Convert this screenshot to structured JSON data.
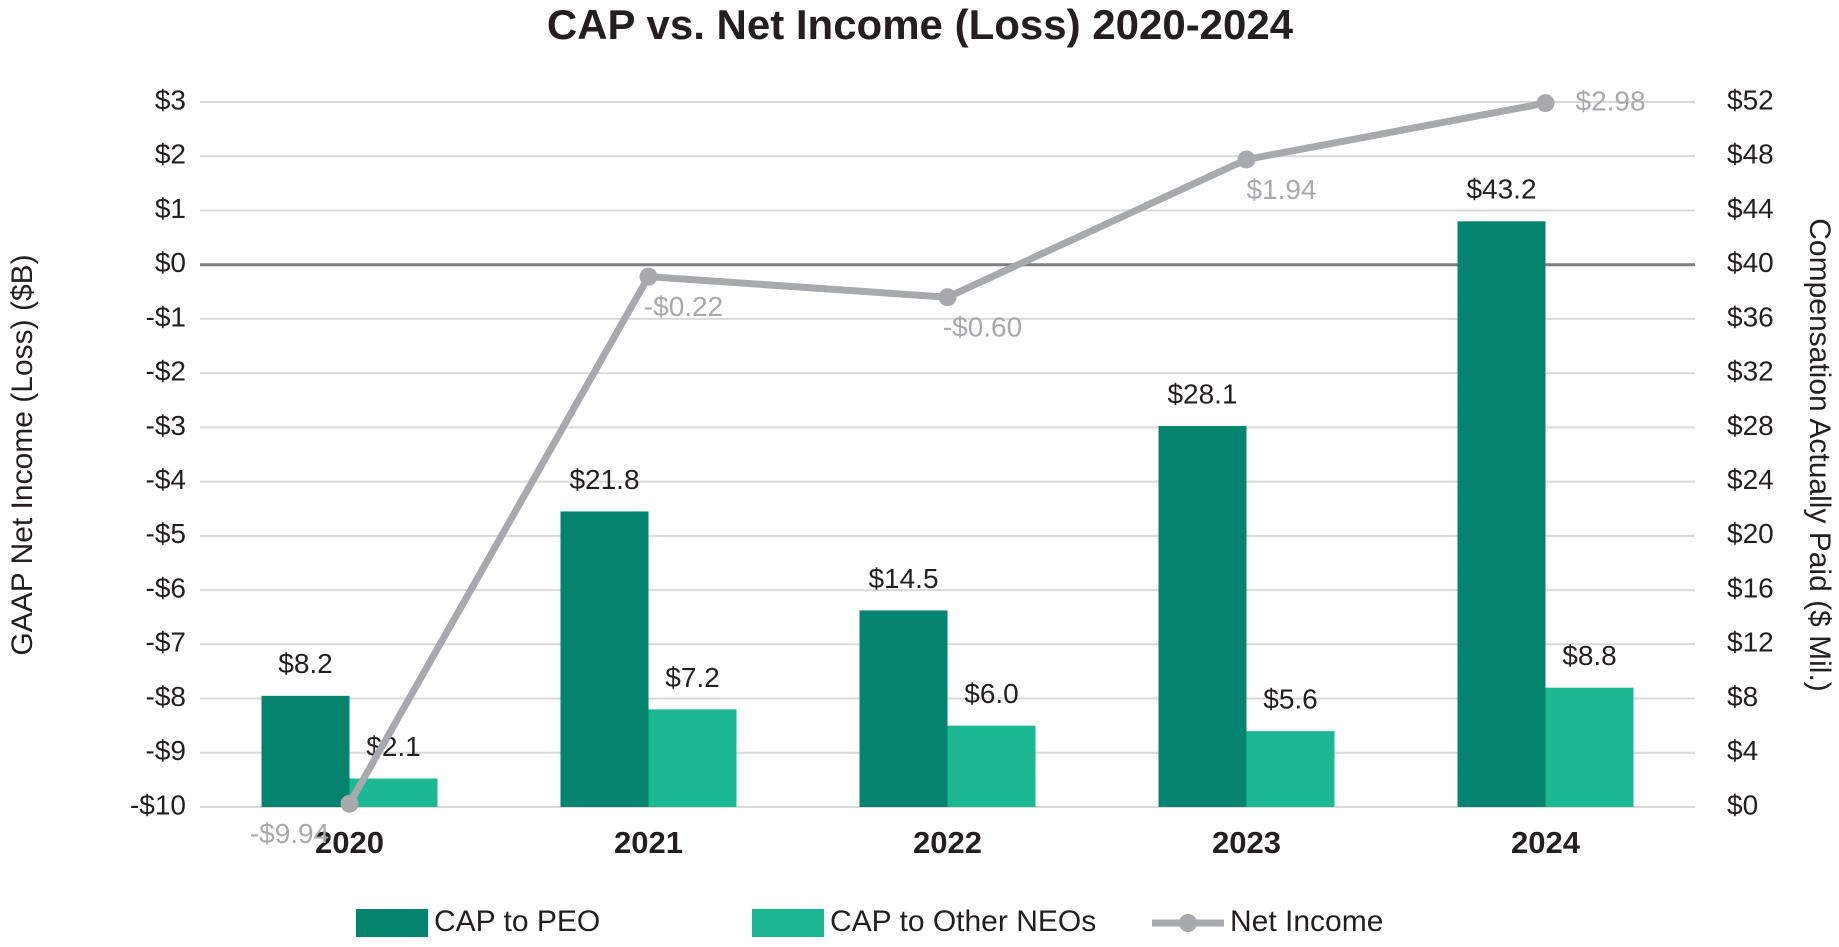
{
  "chart_data": {
    "type": "bar",
    "title": "CAP vs. Net Income (Loss) 2020-2024",
    "ylabel": "GAAP Net Income (Loss) ($B)",
    "y2label": "Compensation Actually Paid ($  Mil.)",
    "categories": [
      "2020",
      "2021",
      "2022",
      "2023",
      "2024"
    ],
    "series": [
      {
        "name": "CAP to PEO",
        "type": "bar",
        "axis": "y2",
        "color": "#04836f",
        "values": [
          8.2,
          21.8,
          14.5,
          28.1,
          43.2
        ],
        "value_labels": [
          "$8.2",
          "$21.8",
          "$14.5",
          "$28.1",
          "$43.2"
        ]
      },
      {
        "name": "CAP to Other NEOs",
        "type": "bar",
        "axis": "y2",
        "color": "#1cb892",
        "values": [
          2.1,
          7.2,
          6.0,
          5.6,
          8.8
        ],
        "value_labels": [
          "$2.1",
          "$7.2",
          "$6.0",
          "$5.6",
          "$8.8"
        ]
      },
      {
        "name": "Net Income",
        "type": "line",
        "axis": "y",
        "color": "#a7a9ac",
        "values": [
          -9.94,
          -0.22,
          -0.6,
          1.94,
          2.98
        ],
        "value_labels": [
          "-$9.94",
          "-$0.22",
          "-$0.60",
          "$1.94",
          "$2.98"
        ]
      }
    ],
    "ylim": [
      -10,
      3
    ],
    "yticks": [
      {
        "value": 3,
        "label": "$3"
      },
      {
        "value": 2,
        "label": "$2"
      },
      {
        "value": 1,
        "label": "$1"
      },
      {
        "value": 0,
        "label": "$0"
      },
      {
        "value": -1,
        "label": "-$1"
      },
      {
        "value": -2,
        "label": "-$2"
      },
      {
        "value": -3,
        "label": "-$3"
      },
      {
        "value": -4,
        "label": "-$4"
      },
      {
        "value": -5,
        "label": "-$5"
      },
      {
        "value": -6,
        "label": "-$6"
      },
      {
        "value": -7,
        "label": "-$7"
      },
      {
        "value": -8,
        "label": "-$8"
      },
      {
        "value": -9,
        "label": "-$9"
      },
      {
        "value": -10,
        "label": "-$10"
      }
    ],
    "y2lim": [
      0,
      52
    ],
    "y2ticks": [
      {
        "value": 52,
        "label": "$52"
      },
      {
        "value": 48,
        "label": "$48"
      },
      {
        "value": 44,
        "label": "$44"
      },
      {
        "value": 40,
        "label": "$40"
      },
      {
        "value": 36,
        "label": "$36"
      },
      {
        "value": 32,
        "label": "$32"
      },
      {
        "value": 28,
        "label": "$28"
      },
      {
        "value": 24,
        "label": "$24"
      },
      {
        "value": 20,
        "label": "$20"
      },
      {
        "value": 16,
        "label": "$16"
      },
      {
        "value": 12,
        "label": "$12"
      },
      {
        "value": 8,
        "label": "$8"
      },
      {
        "value": 4,
        "label": "$4"
      },
      {
        "value": 0,
        "label": "$0"
      }
    ],
    "grid": true,
    "legend": "bottom"
  }
}
